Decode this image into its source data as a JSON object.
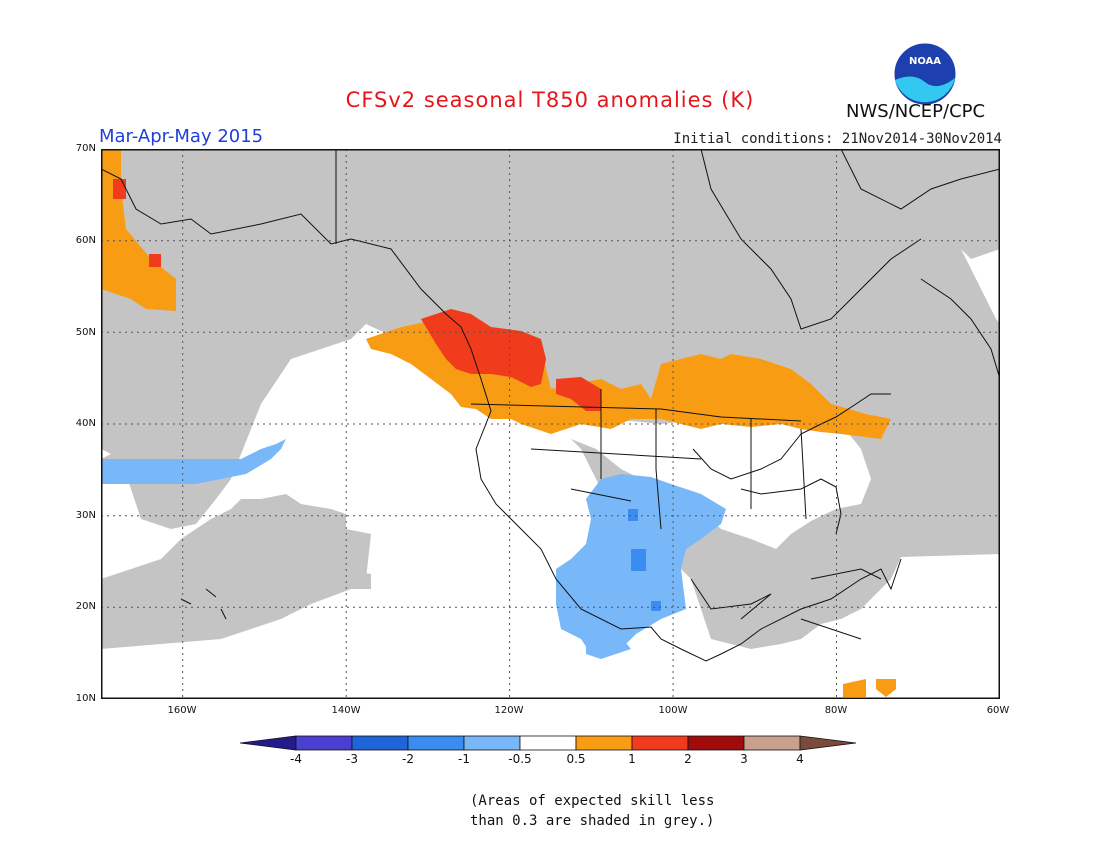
{
  "header": {
    "title": "CFSv2 seasonal T850 anomalies (K)",
    "season": "Mar-Apr-May 2015",
    "initial_conditions": "Initial conditions: 21Nov2014-30Nov2014",
    "agency": "NWS/NCEP/CPC",
    "logo_text": "NOAA"
  },
  "map": {
    "lat_labels": [
      "70N",
      "60N",
      "50N",
      "40N",
      "30N",
      "20N",
      "10N"
    ],
    "lon_labels": [
      "160W",
      "140W",
      "120W",
      "100W",
      "80W",
      "60W"
    ],
    "extent": {
      "lon": [
        -170,
        -60
      ],
      "lat": [
        10,
        70
      ]
    },
    "grey_meaning": "skill < 0.3"
  },
  "legend": {
    "labels": [
      "-4",
      "-3",
      "-2",
      "-1",
      "-0.5",
      "0.5",
      "1",
      "2",
      "3",
      "4"
    ],
    "colors": [
      "#241a8c",
      "#4a3fd0",
      "#1f64d8",
      "#3b8cf0",
      "#78b8f8",
      "#ffffff",
      "#f89c14",
      "#f03c1c",
      "#a00c0c",
      "#c8a08c",
      "#7a4a3a"
    ]
  },
  "note": {
    "line1": "(Areas of expected skill less",
    "line2": "than 0.3 are shaded in grey.)"
  }
}
